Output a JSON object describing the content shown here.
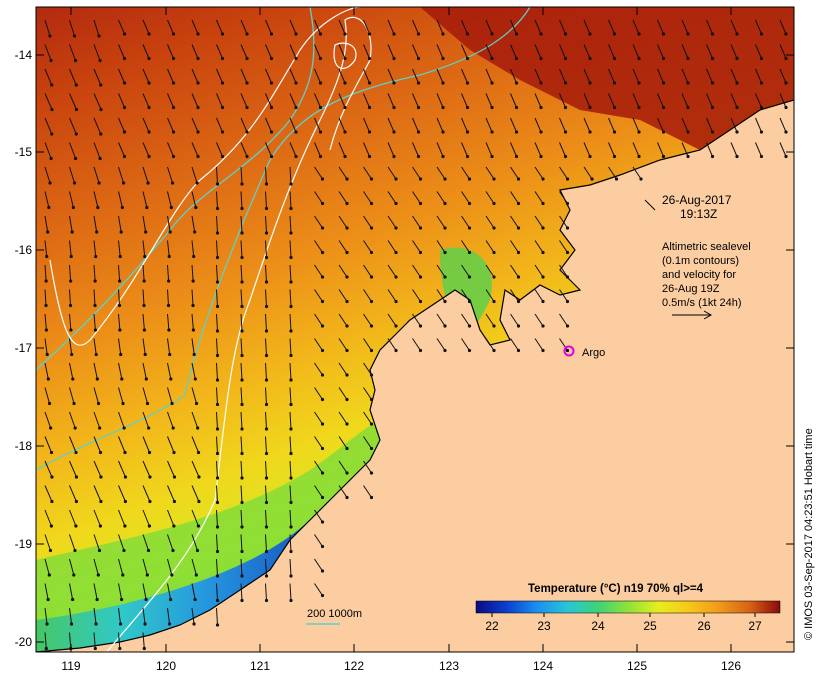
{
  "map": {
    "lat_ticks": [
      "-14",
      "-15",
      "-16",
      "-17",
      "-18",
      "-19",
      "-20"
    ],
    "lon_ticks": [
      "119",
      "120",
      "121",
      "122",
      "123",
      "124",
      "125",
      "126"
    ]
  },
  "annotation": {
    "date": "26-Aug-2017",
    "time": "19:13Z",
    "legend_lines": [
      "Altimetric sealevel",
      "(0.1m contours)",
      "and velocity for",
      "26-Aug 19Z",
      "0.5m/s (1kt 24h)"
    ]
  },
  "marker": {
    "label": "Argo",
    "color": "#e000e0"
  },
  "bathymetry_label": "200  1000m",
  "colorbar": {
    "title": "Temperature (°C) n19 70% ql>=4",
    "ticks": [
      "22",
      "23",
      "24",
      "25",
      "26",
      "27"
    ],
    "colors": [
      "#0b0b80",
      "#0a3fd0",
      "#1a8ff0",
      "#27c6d8",
      "#3ed27a",
      "#8ee23a",
      "#e6ee1c",
      "#f6c81a",
      "#f09a1a",
      "#d86216",
      "#a82010",
      "#8a0a0a"
    ]
  },
  "credit": "© IMOS 03-Sep-2017 04:23:51 Hobart time",
  "colors": {
    "land": "#fbcda0",
    "contour": "#ffffff",
    "bathymetry": "#5fd0c8"
  }
}
